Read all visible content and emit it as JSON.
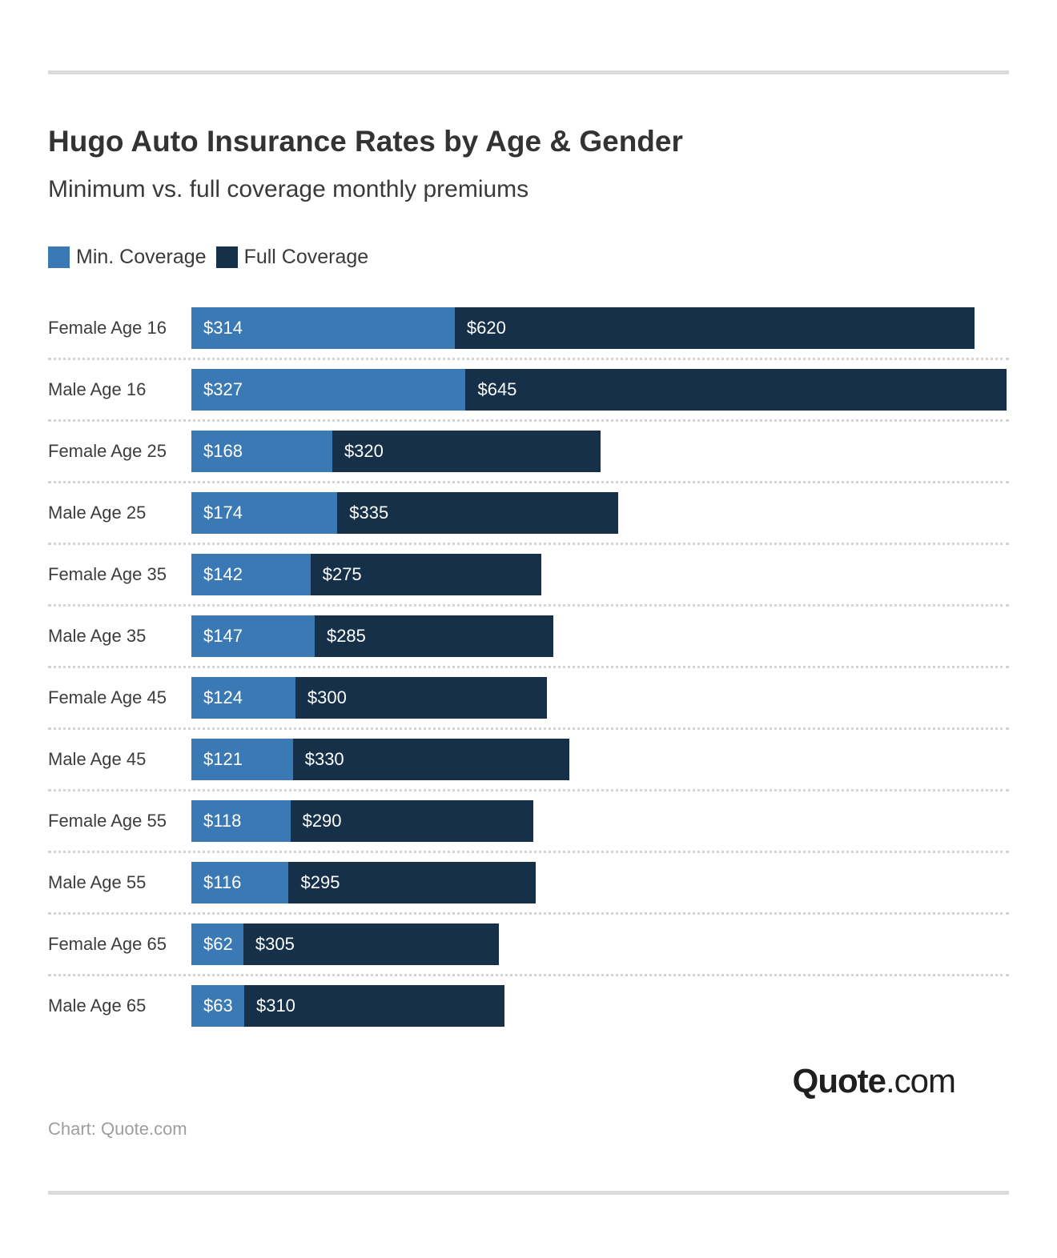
{
  "header": {
    "title": "Hugo Auto Insurance Rates by Age & Gender",
    "subtitle": "Minimum vs. full coverage monthly premiums"
  },
  "legend": {
    "items": [
      {
        "label": "Min. Coverage",
        "color": "#3A79B4"
      },
      {
        "label": "Full Coverage",
        "color": "#16304A"
      }
    ]
  },
  "chart_data": {
    "type": "bar",
    "orientation": "horizontal",
    "stacked": true,
    "title": "Hugo Auto Insurance Rates by Age & Gender",
    "subtitle": "Minimum vs. full coverage monthly premiums",
    "legend_position": "top",
    "grid": "dotted-row-separators",
    "value_prefix": "$",
    "xlim": [
      0,
      972
    ],
    "categories": [
      "Female Age 16",
      "Male Age 16",
      "Female Age 25",
      "Male Age 25",
      "Female Age 35",
      "Male Age 35",
      "Female Age 45",
      "Male Age 45",
      "Female Age 55",
      "Male Age 55",
      "Female Age 65",
      "Male Age 65"
    ],
    "series": [
      {
        "name": "Min. Coverage",
        "key": "min-coverage",
        "color": "#3A79B4",
        "values": [
          314,
          327,
          168,
          174,
          142,
          147,
          124,
          121,
          118,
          116,
          62,
          63
        ]
      },
      {
        "name": "Full Coverage",
        "key": "full-coverage",
        "color": "#16304A",
        "values": [
          620,
          645,
          320,
          335,
          275,
          285,
          300,
          330,
          290,
          295,
          305,
          310
        ]
      }
    ]
  },
  "footer": {
    "logo_bold": "Quote",
    "logo_suffix": ".com",
    "credit": "Chart: Quote.com"
  }
}
